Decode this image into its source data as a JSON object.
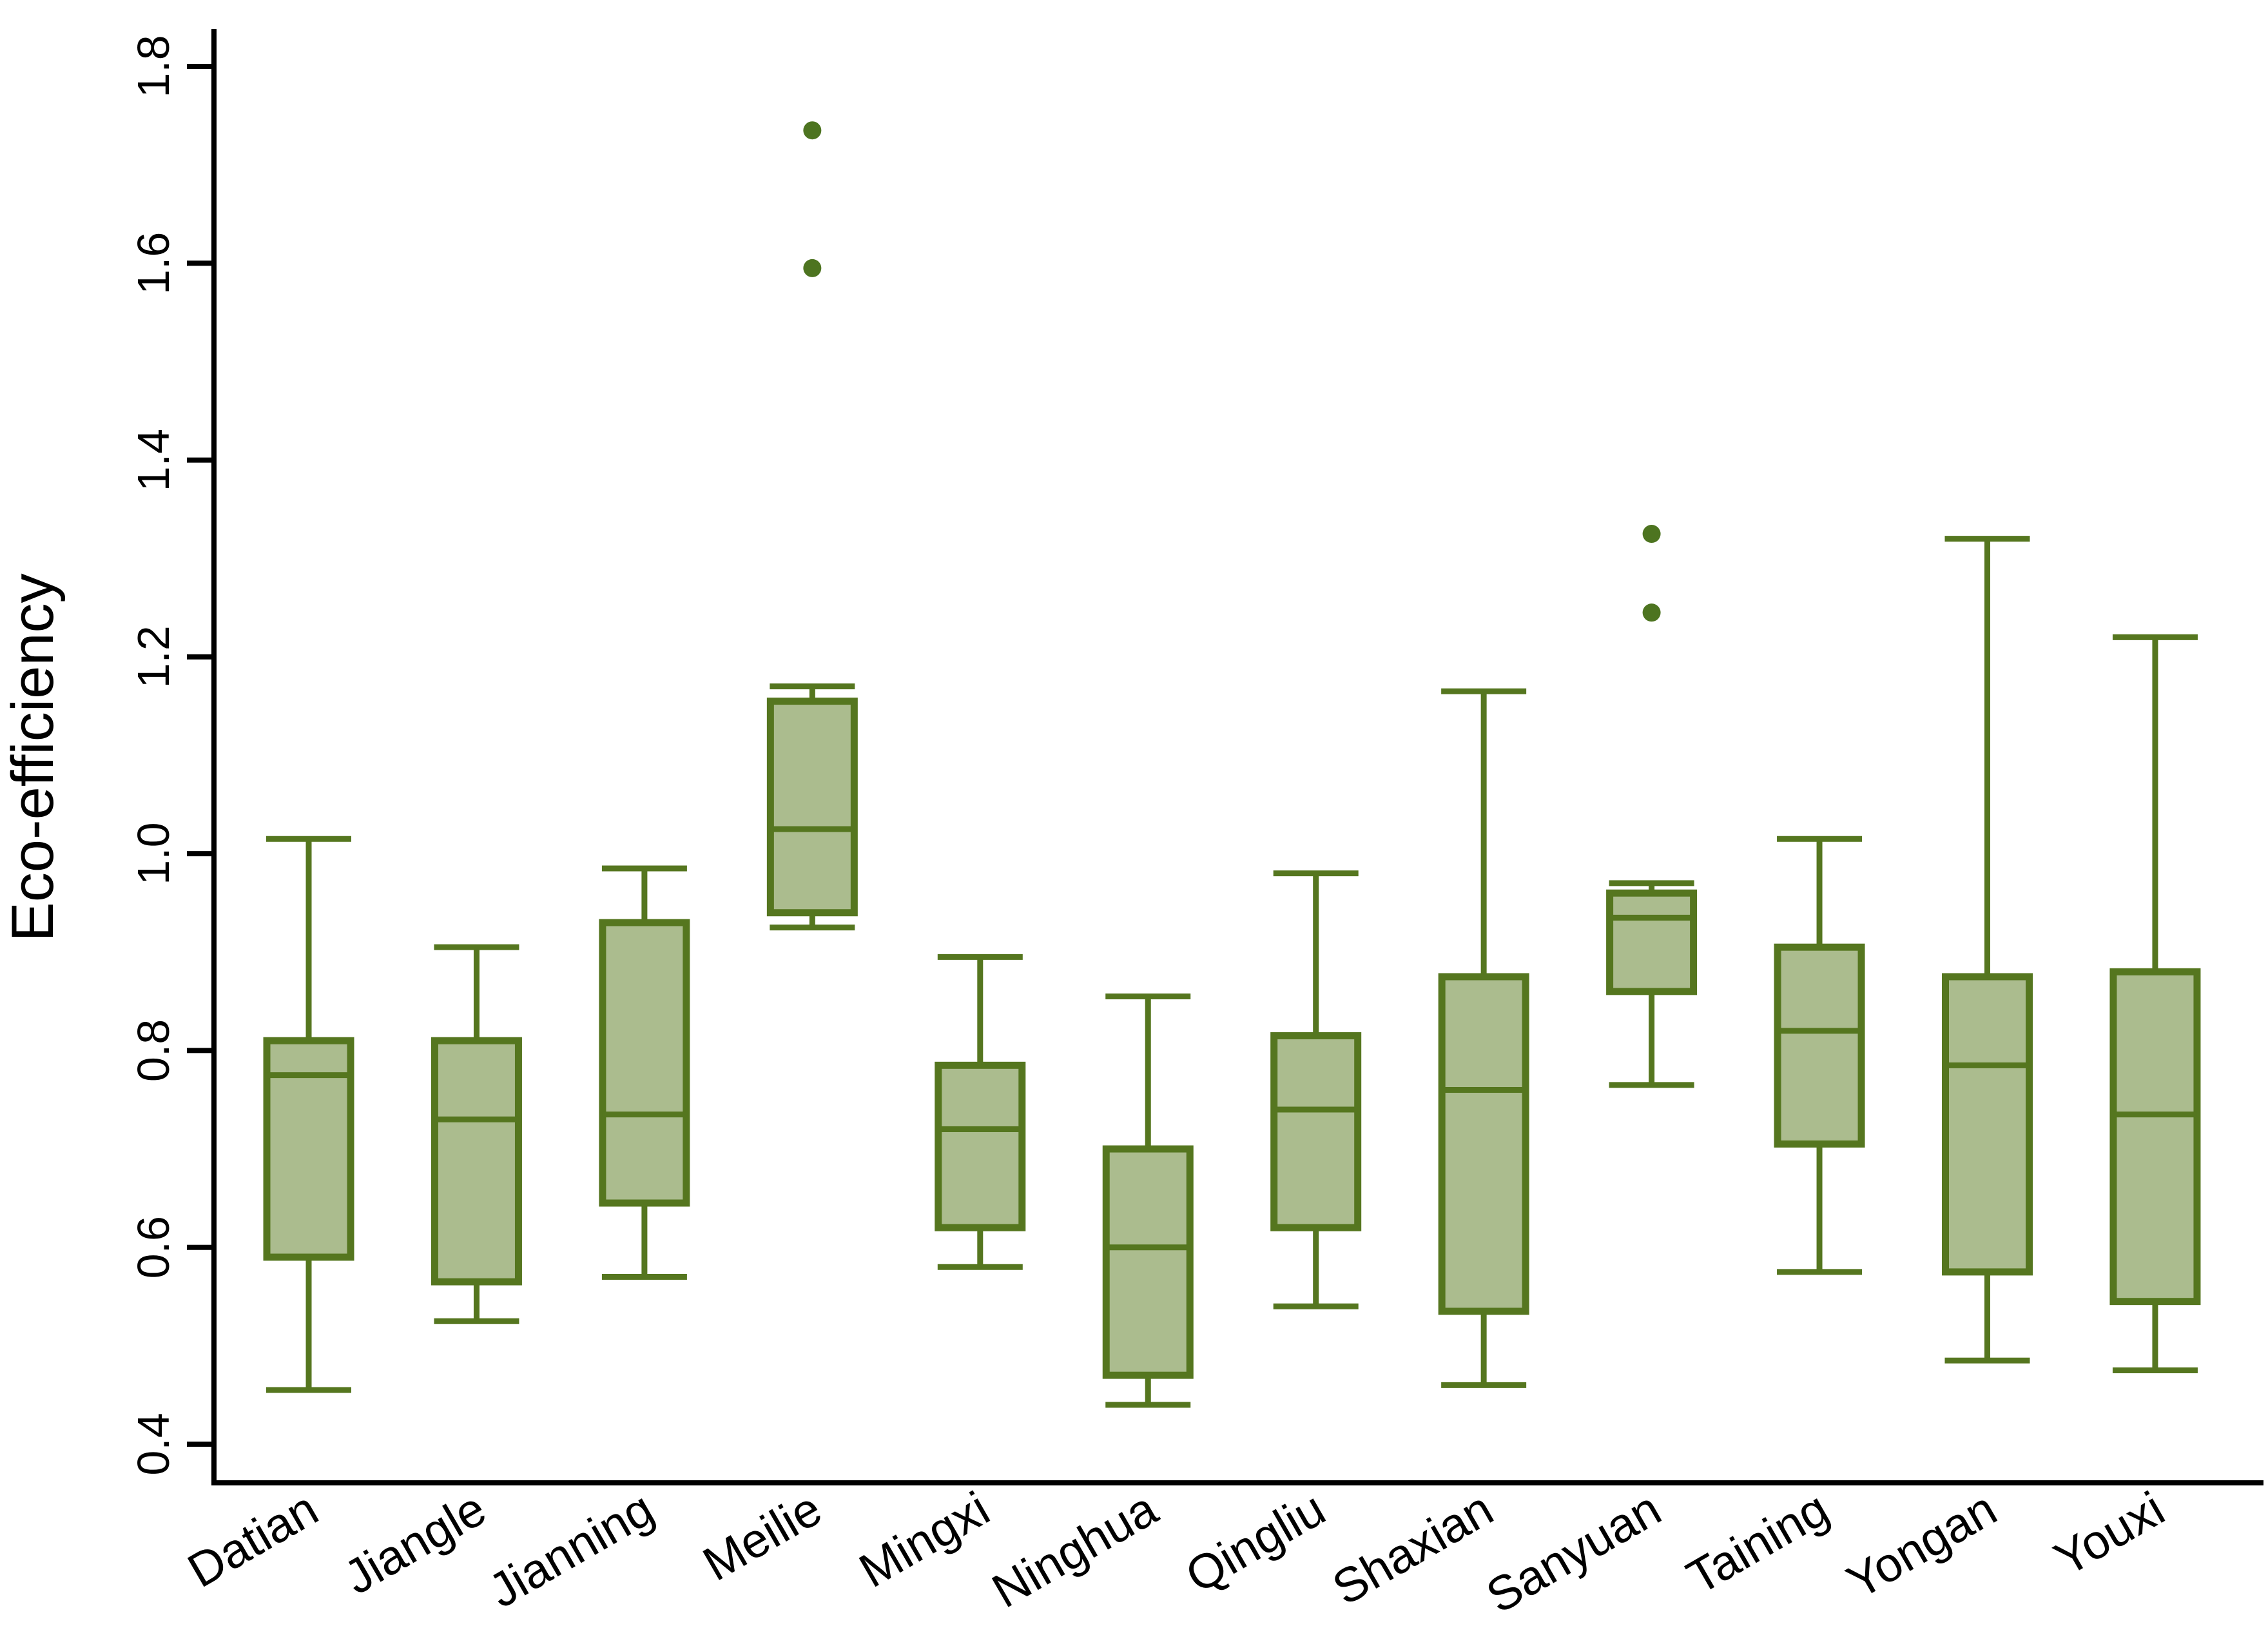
{
  "figure": {
    "background": "#ffffff"
  },
  "chart_data": {
    "type": "boxplot",
    "title": "",
    "xlabel": "",
    "ylabel": "Eco-efficiency",
    "ylim": [
      0.36,
      1.84
    ],
    "yticks": [
      0.4,
      0.6,
      0.8,
      1.0,
      1.2,
      1.4,
      1.6,
      1.8
    ],
    "ytick_labels": [
      "0.4",
      "0.6",
      "0.8",
      "1.0",
      "1.2",
      "1.4",
      "1.6",
      "1.8"
    ],
    "grid": "off",
    "legend": "none",
    "x_label_rotation_deg": -30,
    "y_label_rotation_deg": -90,
    "categories": [
      "Datian",
      "Jiangle",
      "Jianning",
      "Meilie",
      "Mingxi",
      "Ninghua",
      "Qingliu",
      "Shaxian",
      "Sanyuan",
      "Taining",
      "Yongan",
      "Youxi"
    ],
    "boxes": [
      {
        "label": "Datian",
        "whisker_low": 0.455,
        "q1": 0.59,
        "median": 0.775,
        "q3": 0.81,
        "whisker_high": 1.015,
        "outliers": []
      },
      {
        "label": "Jiangle",
        "whisker_low": 0.525,
        "q1": 0.565,
        "median": 0.73,
        "q3": 0.81,
        "whisker_high": 0.905,
        "outliers": []
      },
      {
        "label": "Jianning",
        "whisker_low": 0.57,
        "q1": 0.645,
        "median": 0.735,
        "q3": 0.93,
        "whisker_high": 0.985,
        "outliers": []
      },
      {
        "label": "Meilie",
        "whisker_low": 0.925,
        "q1": 0.94,
        "median": 1.025,
        "q3": 1.155,
        "whisker_high": 1.17,
        "outliers": [
          1.595,
          1.735
        ]
      },
      {
        "label": "Mingxi",
        "whisker_low": 0.58,
        "q1": 0.62,
        "median": 0.72,
        "q3": 0.785,
        "whisker_high": 0.895,
        "outliers": []
      },
      {
        "label": "Ninghua",
        "whisker_low": 0.44,
        "q1": 0.47,
        "median": 0.6,
        "q3": 0.7,
        "whisker_high": 0.855,
        "outliers": []
      },
      {
        "label": "Qingliu",
        "whisker_low": 0.54,
        "q1": 0.62,
        "median": 0.74,
        "q3": 0.815,
        "whisker_high": 0.98,
        "outliers": []
      },
      {
        "label": "Shaxian",
        "whisker_low": 0.46,
        "q1": 0.535,
        "median": 0.76,
        "q3": 0.875,
        "whisker_high": 1.165,
        "outliers": []
      },
      {
        "label": "Sanyuan",
        "whisker_low": 0.765,
        "q1": 0.86,
        "median": 0.935,
        "q3": 0.96,
        "whisker_high": 0.97,
        "outliers": [
          1.245,
          1.325
        ]
      },
      {
        "label": "Taining",
        "whisker_low": 0.575,
        "q1": 0.705,
        "median": 0.82,
        "q3": 0.905,
        "whisker_high": 1.015,
        "outliers": []
      },
      {
        "label": "Yongan",
        "whisker_low": 0.485,
        "q1": 0.575,
        "median": 0.785,
        "q3": 0.875,
        "whisker_high": 1.32,
        "outliers": []
      },
      {
        "label": "Youxi",
        "whisker_low": 0.475,
        "q1": 0.545,
        "median": 0.735,
        "q3": 0.88,
        "whisker_high": 1.22,
        "outliers": []
      }
    ],
    "colors": {
      "box_fill": "#abbc8e",
      "box_stroke": "#55761f",
      "whisker": "#55761f",
      "outlier_dot": "#4d7420",
      "axis": "#000000",
      "tick_text": "#000000",
      "axis_title_text": "#000000"
    }
  }
}
